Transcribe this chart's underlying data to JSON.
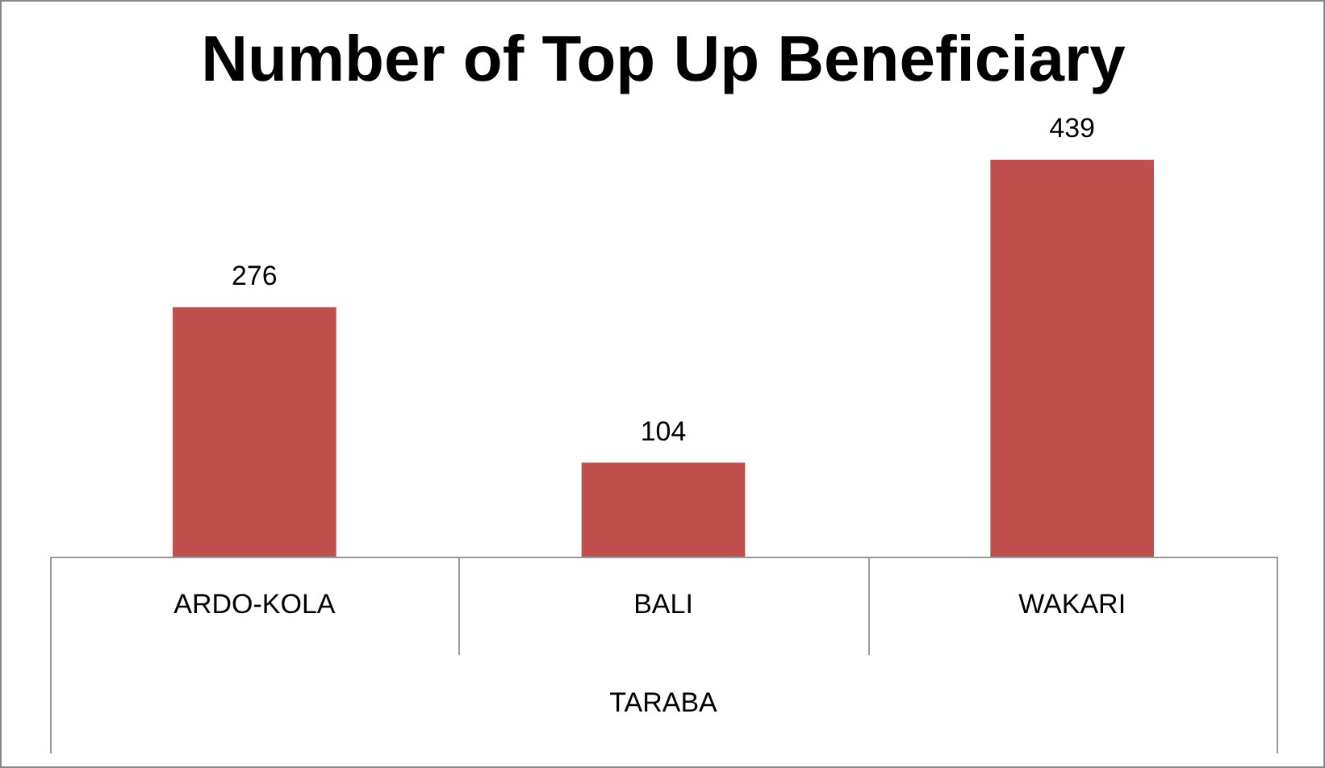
{
  "chart_data": {
    "type": "bar",
    "title": "Number of Top Up Beneficiary",
    "categories": [
      "ARDO-KOLA",
      "BALI",
      "WAKARI"
    ],
    "xlabel": "TARABA",
    "values": [
      276,
      104,
      439
    ],
    "color": "#c0504d",
    "data_labels": true
  }
}
